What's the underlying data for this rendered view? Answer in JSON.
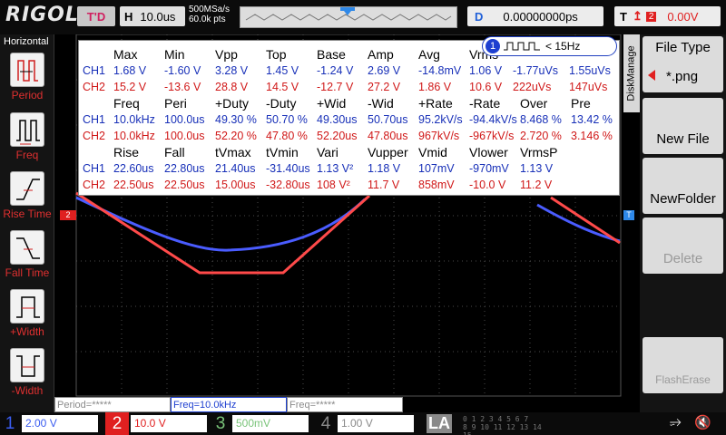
{
  "topbar": {
    "brand": "RIGOL",
    "run_state": "T'D",
    "horizontal_key": "H",
    "timebase": "10.0us",
    "sample_rate": "500MSa/s",
    "memory_depth": "60.0k pts",
    "delay_key": "D",
    "delay_value": "0.00000000ps",
    "trigger_key": "T",
    "trigger_source": "2",
    "trigger_level": "0.00V"
  },
  "left_menu": {
    "title": "Horizontal",
    "items": [
      {
        "label": "Period",
        "icon": "period-icon"
      },
      {
        "label": "Freq",
        "icon": "frequency-icon"
      },
      {
        "label": "Rise Time",
        "icon": "rise-time-icon"
      },
      {
        "label": "Fall Time",
        "icon": "fall-time-icon"
      },
      {
        "label": "+Width",
        "icon": "positive-width-icon"
      },
      {
        "label": "-Width",
        "icon": "negative-width-icon"
      }
    ]
  },
  "right_menu": {
    "tab": "DiskManage",
    "file_type_title": "File Type",
    "file_type_value": "*.png",
    "new_file": "New File",
    "new_folder": "NewFolder",
    "delete": "Delete",
    "flash_erase": "FlashErase"
  },
  "counter": {
    "channel": "1",
    "value": "< 15Hz"
  },
  "markers": {
    "ch2": "2",
    "trigger": "T"
  },
  "measurements": {
    "block1": {
      "headers": [
        "Max",
        "Min",
        "Vpp",
        "Top",
        "Base",
        "Amp",
        "Avg",
        "Vrms",
        "",
        ""
      ],
      "ch1": [
        "CH1",
        "1.68 V",
        "-1.60 V",
        "3.28 V",
        "1.45 V",
        "-1.24 V",
        "2.69 V",
        "-14.8mV",
        "1.06 V",
        "-1.77uVs",
        "1.55uVs"
      ],
      "ch2": [
        "CH2",
        "15.2 V",
        "-13.6 V",
        "28.8 V",
        "14.5 V",
        "-12.7 V",
        "27.2 V",
        "1.86 V",
        "10.6 V",
        "222uVs",
        "147uVs"
      ]
    },
    "block2": {
      "headers": [
        "Freq",
        "Peri",
        "+Duty",
        "-Duty",
        "+Wid",
        "-Wid",
        "+Rate",
        "-Rate",
        "Over",
        "Pre"
      ],
      "ch1": [
        "CH1",
        "10.0kHz",
        "100.0us",
        "49.30 %",
        "50.70 %",
        "49.30us",
        "50.70us",
        "95.2kV/s",
        "-94.4kV/s",
        "8.468 %",
        "13.42 %"
      ],
      "ch2": [
        "CH2",
        "10.0kHz",
        "100.0us",
        "52.20 %",
        "47.80 %",
        "52.20us",
        "47.80us",
        "967kV/s",
        "-967kV/s",
        "2.720 %",
        "3.146 %"
      ]
    },
    "block3": {
      "headers": [
        "Rise",
        "Fall",
        "tVmax",
        "tVmin",
        "Vari",
        "Vupper",
        "Vmid",
        "Vlower",
        "VrmsP"
      ],
      "ch1": [
        "CH1",
        "22.60us",
        "22.80us",
        "21.40us",
        "-31.40us",
        "1.13 V²",
        "1.18 V",
        "107mV",
        "-970mV",
        "1.13 V"
      ],
      "ch2": [
        "CH2",
        "22.50us",
        "22.50us",
        "15.00us",
        "-32.80us",
        "108 V²",
        "11.7 V",
        "858mV",
        "-10.0 V",
        "11.2 V"
      ]
    }
  },
  "bottom_strip": {
    "period": "Period=*****",
    "freq": "Freq=10.0kHz",
    "freq2": "Freq=*****"
  },
  "channels": [
    {
      "num": "1",
      "scale": "2.00 V",
      "color": "#3a5cf0",
      "active": true
    },
    {
      "num": "2",
      "scale": "10.0 V",
      "color": "#e02020",
      "active": true
    },
    {
      "num": "3",
      "scale": "500mV",
      "color": "#7ac47a",
      "active": false
    },
    {
      "num": "4",
      "scale": "1.00 V",
      "color": "#8a8a8a",
      "active": false
    }
  ],
  "la": {
    "label": "LA",
    "bits_row1": "0 1 2 3  4 5 6 7",
    "bits_row2": "8 9 10 11 12 13 14 15"
  },
  "colors": {
    "ch1_trace": "#4a5cff",
    "ch2_trace": "#ff4a4a",
    "grid": "#4a4a4a"
  }
}
